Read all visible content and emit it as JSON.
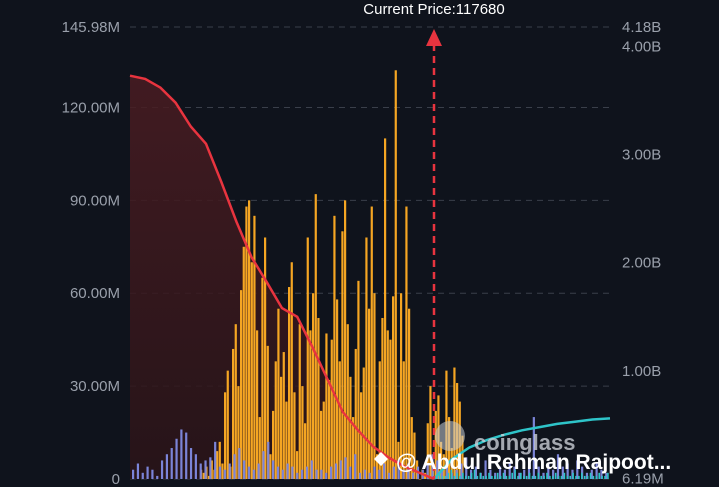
{
  "chart_data": {
    "type": "bar",
    "current_price_label": "Current Price:117680",
    "current_price": 117680,
    "left_axis": {
      "ticks": [
        "145.98M",
        "120.00M",
        "90.00M",
        "60.00M",
        "30.00M",
        "0"
      ],
      "tick_values": [
        145.98,
        120,
        90,
        60,
        30,
        0
      ],
      "range": [
        0,
        145.98
      ]
    },
    "right_axis": {
      "ticks": [
        "4.18B",
        "4.00B",
        "3.00B",
        "2.00B",
        "1.00B",
        "6.19M"
      ],
      "tick_values": [
        4.18,
        4.0,
        3.0,
        2.0,
        1.0,
        0.00619
      ],
      "range": [
        0,
        4.18
      ]
    },
    "grid": true,
    "series": [
      {
        "color": "#f5a623",
        "values": [
          3,
          2,
          4,
          1,
          6,
          3,
          9,
          12,
          5,
          28,
          35,
          4,
          42,
          50,
          30,
          61,
          75,
          88,
          90,
          70,
          85,
          48,
          20,
          65,
          78,
          43,
          8,
          22,
          38,
          55,
          33,
          41,
          25,
          62,
          70,
          28,
          9,
          50,
          30,
          18,
          78,
          48,
          60,
          92,
          52,
          22,
          25,
          47,
          32,
          45,
          85,
          58,
          38,
          80,
          90,
          50,
          33,
          20,
          42,
          64,
          28,
          36,
          78,
          55,
          88,
          60,
          8,
          38,
          52,
          110,
          48,
          45,
          59,
          132,
          12,
          60,
          38,
          88,
          55,
          20,
          15,
          6,
          0,
          3,
          2,
          18,
          30,
          4,
          22,
          27,
          12,
          8,
          35,
          20,
          10,
          36,
          31,
          25,
          14
        ]
      },
      {
        "color": "#7b84d8",
        "values": [
          3,
          5,
          2,
          4,
          3,
          1,
          6,
          8,
          10,
          13,
          16,
          15,
          10,
          8,
          5,
          6,
          7,
          12,
          4,
          3,
          5,
          8,
          10,
          6,
          4,
          3,
          5,
          9,
          12,
          6,
          4,
          3,
          5,
          4,
          2,
          3,
          4,
          6,
          3,
          3,
          2,
          4,
          5,
          6,
          7,
          4,
          8,
          2,
          3,
          2,
          4,
          3,
          5,
          2,
          4,
          6,
          3,
          5,
          2,
          4,
          3,
          5,
          8,
          6,
          3,
          4,
          2,
          3,
          5,
          7,
          3,
          4,
          2,
          6,
          3,
          2,
          4,
          3,
          5,
          4,
          2,
          3,
          4,
          20,
          4,
          2,
          5,
          3,
          8,
          4,
          5,
          3,
          6,
          4,
          2,
          3,
          5,
          3,
          2
        ]
      },
      {
        "color": "#2ec4c9",
        "values": [
          1,
          2,
          1,
          1,
          2,
          3,
          1,
          2,
          1,
          2,
          1,
          1,
          2,
          3,
          1,
          2,
          1,
          1,
          2,
          1,
          1,
          2,
          1,
          2,
          1,
          1,
          2,
          3,
          1,
          2,
          1,
          1,
          2,
          1,
          1,
          2,
          1,
          1,
          2,
          1,
          1,
          2,
          1,
          1,
          2,
          1,
          1,
          2,
          1,
          1,
          2,
          1,
          1,
          2,
          1,
          1,
          2,
          1,
          1,
          2
        ]
      }
    ],
    "cumulative_lines": [
      {
        "color": "#e8343f",
        "x": [
          0,
          0.05,
          0.1,
          0.15,
          0.2,
          0.25,
          0.3,
          0.35,
          0.4,
          0.45,
          0.5,
          0.55,
          0.6,
          0.65,
          0.7,
          0.75,
          0.8,
          0.85,
          0.9,
          0.95,
          1.0
        ],
        "y": [
          3.73,
          3.7,
          3.62,
          3.48,
          3.26,
          3.1,
          2.75,
          2.38,
          2.05,
          1.82,
          1.58,
          1.5,
          1.22,
          0.92,
          0.62,
          0.45,
          0.3,
          0.2,
          0.12,
          0.06,
          0.0
        ]
      },
      {
        "color": "#2ec4c9",
        "x": [
          0,
          0.1,
          0.2,
          0.3,
          0.4,
          0.5,
          0.6,
          0.7,
          0.8,
          0.9,
          1.0
        ],
        "y": [
          0.0,
          0.18,
          0.29,
          0.36,
          0.41,
          0.45,
          0.48,
          0.51,
          0.53,
          0.55,
          0.56
        ]
      }
    ],
    "watermark": "coinglass",
    "credit": "@ Abdul Rehman Rajpoot..."
  }
}
